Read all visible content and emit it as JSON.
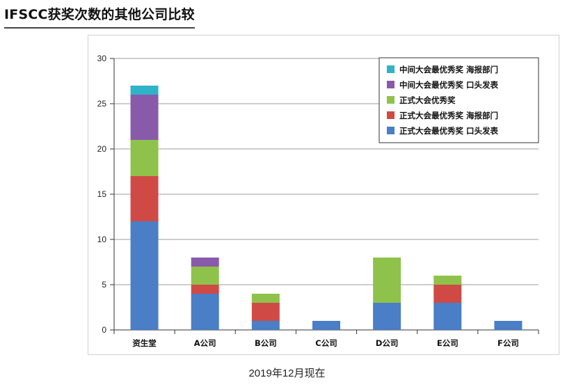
{
  "page": {
    "title": "IFSCC获奖次数的其他公司比较",
    "caption": "2019年12月现在"
  },
  "chart_data": {
    "type": "bar",
    "stacked": true,
    "categories": [
      "资生堂",
      "A公司",
      "B公司",
      "C公司",
      "D公司",
      "E公司",
      "F公司"
    ],
    "ylim": [
      0,
      30
    ],
    "yticks": [
      0,
      5,
      10,
      15,
      20,
      25,
      30
    ],
    "grid": true,
    "legend_position": "top-right",
    "series": [
      {
        "name": "正式大会最优秀奖 口头发表",
        "color": "#4a7ec6",
        "values": [
          12,
          4,
          1,
          1,
          3,
          3,
          1
        ]
      },
      {
        "name": "正式大会最优秀奖 海报部门",
        "color": "#d04a45",
        "values": [
          5,
          1,
          2,
          0,
          0,
          2,
          0
        ]
      },
      {
        "name": "正式大会优秀奖",
        "color": "#8fc24a",
        "values": [
          4,
          2,
          1,
          0,
          5,
          1,
          0
        ]
      },
      {
        "name": "中间大会最优秀奖 口头发表",
        "color": "#8a5aaa",
        "values": [
          5,
          1,
          0,
          0,
          0,
          0,
          0
        ]
      },
      {
        "name": "中间大会最优秀奖 海报部门",
        "color": "#2fb3c8",
        "values": [
          1,
          0,
          0,
          0,
          0,
          0,
          0
        ]
      }
    ]
  }
}
